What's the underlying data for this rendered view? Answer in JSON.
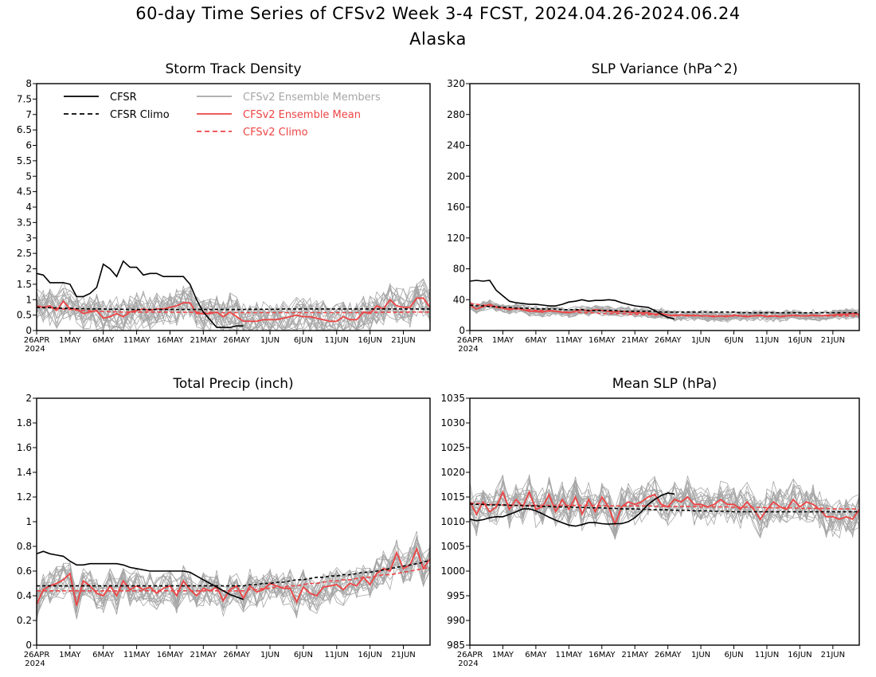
{
  "figure": {
    "title": "60-day Time Series of CFSv2 Week 3-4 FCST, 2024.04.26-2024.06.24",
    "subtitle": "Alaska"
  },
  "legend": {
    "cfsr": "CFSR",
    "cfsr_climo": "CFSR Climo",
    "members": "CFSv2 Ensemble Members",
    "ens_mean": "CFSv2 Ensemble Mean",
    "cfsv2_climo": "CFSv2 Climo"
  },
  "colors": {
    "cfsr": "#000000",
    "members": "#a6a6a6",
    "ens_mean": "#ee4444",
    "climo_red": "#ee4444"
  },
  "chart_data": [
    {
      "type": "line",
      "title": "Storm Track Density",
      "x_ticks": [
        "26APR",
        "1MAY",
        "6MAY",
        "11MAY",
        "16MAY",
        "21MAY",
        "26MAY",
        "1JUN",
        "6JUN",
        "11JUN",
        "16JUN",
        "21JUN"
      ],
      "x_year": "2024",
      "x_range_days": [
        1,
        60
      ],
      "ylim": [
        0,
        8
      ],
      "y_ticks": [
        "0",
        "0.5",
        "1",
        "1.5",
        "2",
        "2.5",
        "3",
        "3.5",
        "4",
        "4.5",
        "5",
        "5.5",
        "6",
        "6.5",
        "7",
        "7.5",
        "8"
      ],
      "legend_position": "top-left",
      "cfsr": [
        1.85,
        1.8,
        1.55,
        1.55,
        1.55,
        1.5,
        1.1,
        1.1,
        1.2,
        1.4,
        2.15,
        2.0,
        1.75,
        2.25,
        2.05,
        2.05,
        1.8,
        1.85,
        1.85,
        1.75,
        1.75,
        1.75,
        1.75,
        1.5,
        1.0,
        0.6,
        0.35,
        0.1,
        0.1,
        0.1,
        0.15,
        0.15
      ],
      "cfsr_climo": [
        0.75,
        0.74,
        0.74,
        0.73,
        0.72,
        0.72,
        0.71,
        0.71,
        0.7,
        0.7,
        0.7,
        0.69,
        0.69,
        0.69,
        0.68,
        0.68,
        0.68,
        0.68,
        0.68,
        0.68,
        0.68,
        0.68,
        0.68,
        0.68,
        0.68,
        0.68,
        0.68,
        0.68,
        0.68,
        0.68,
        0.68,
        0.68,
        0.69,
        0.69,
        0.69,
        0.69,
        0.69,
        0.7,
        0.7,
        0.7,
        0.7,
        0.7,
        0.7,
        0.7,
        0.7,
        0.7,
        0.7,
        0.7,
        0.7,
        0.7,
        0.7,
        0.7,
        0.7,
        0.7,
        0.7,
        0.7,
        0.7,
        0.7,
        0.7,
        0.7
      ],
      "ens_mean": [
        0.8,
        0.75,
        0.8,
        0.65,
        0.95,
        0.7,
        0.7,
        0.55,
        0.6,
        0.65,
        0.4,
        0.45,
        0.55,
        0.45,
        0.6,
        0.65,
        0.7,
        0.65,
        0.7,
        0.7,
        0.75,
        0.8,
        0.9,
        0.9,
        0.55,
        0.55,
        0.55,
        0.6,
        0.45,
        0.6,
        0.45,
        0.3,
        0.3,
        0.3,
        0.35,
        0.35,
        0.35,
        0.4,
        0.45,
        0.5,
        0.45,
        0.45,
        0.4,
        0.35,
        0.3,
        0.3,
        0.45,
        0.35,
        0.35,
        0.6,
        0.55,
        0.8,
        0.7,
        1.0,
        0.8,
        0.75,
        0.75,
        1.05,
        1.05,
        0.75
      ],
      "cfsv2_climo": [
        0.78,
        0.76,
        0.74,
        0.72,
        0.7,
        0.68,
        0.66,
        0.65,
        0.64,
        0.63,
        0.62,
        0.61,
        0.61,
        0.6,
        0.6,
        0.6,
        0.6,
        0.6,
        0.6,
        0.6,
        0.6,
        0.59,
        0.59,
        0.59,
        0.59,
        0.59,
        0.59,
        0.58,
        0.58,
        0.58,
        0.58,
        0.58,
        0.58,
        0.58,
        0.58,
        0.58,
        0.58,
        0.58,
        0.58,
        0.58,
        0.58,
        0.58,
        0.58,
        0.58,
        0.58,
        0.58,
        0.58,
        0.58,
        0.58,
        0.59,
        0.59,
        0.59,
        0.59,
        0.59,
        0.59,
        0.59,
        0.6,
        0.6,
        0.6,
        0.6
      ]
    },
    {
      "type": "line",
      "title": "SLP Variance (hPa^2)",
      "x_ticks": [
        "26APR",
        "1MAY",
        "6MAY",
        "11MAY",
        "16MAY",
        "21MAY",
        "26MAY",
        "1JUN",
        "6JUN",
        "11JUN",
        "16JUN",
        "21JUN"
      ],
      "x_year": "2024",
      "x_range_days": [
        1,
        60
      ],
      "ylim": [
        0,
        320
      ],
      "y_ticks": [
        "0",
        "40",
        "80",
        "120",
        "160",
        "200",
        "240",
        "280",
        "320"
      ],
      "cfsr": [
        64,
        65,
        64,
        65,
        52,
        45,
        38,
        36,
        35,
        34,
        34,
        33,
        32,
        32,
        34,
        37,
        38,
        40,
        38,
        39,
        39,
        40,
        39,
        36,
        34,
        32,
        31,
        30,
        26,
        21,
        17,
        15
      ],
      "cfsr_climo": [
        33,
        32,
        32,
        31,
        31,
        30,
        30,
        29,
        29,
        29,
        28,
        28,
        28,
        28,
        27,
        27,
        27,
        27,
        26,
        26,
        26,
        26,
        26,
        25,
        25,
        25,
        25,
        25,
        25,
        24,
        24,
        24,
        24,
        24,
        24,
        24,
        24,
        24,
        24,
        24,
        24,
        23,
        23,
        23,
        23,
        23,
        23,
        23,
        23,
        23,
        23,
        23,
        23,
        23,
        23,
        23,
        23,
        23,
        23,
        23
      ],
      "ens_mean": [
        33,
        28,
        31,
        34,
        30,
        29,
        27,
        29,
        27,
        25,
        25,
        24,
        26,
        25,
        24,
        23,
        25,
        27,
        25,
        27,
        26,
        25,
        24,
        25,
        24,
        23,
        23,
        23,
        21,
        22,
        20,
        19,
        20,
        19,
        20,
        19,
        19,
        18,
        19,
        18,
        20,
        19,
        18,
        19,
        20,
        18,
        19,
        18,
        19,
        20,
        19,
        19,
        20,
        19,
        20,
        20,
        21,
        21,
        22,
        21
      ],
      "cfsv2_climo": [
        35,
        34,
        33,
        32,
        31,
        30,
        29,
        28,
        27,
        27,
        26,
        26,
        25,
        25,
        24,
        24,
        24,
        23,
        23,
        23,
        22,
        22,
        22,
        22,
        21,
        21,
        21,
        21,
        20,
        20,
        20,
        20,
        20,
        20,
        19,
        19,
        19,
        19,
        19,
        19,
        19,
        19,
        19,
        19,
        19,
        19,
        19,
        19,
        19,
        19,
        19,
        19,
        19,
        19,
        19,
        19,
        19,
        19,
        19,
        19
      ]
    },
    {
      "type": "line",
      "title": "Total Precip (inch)",
      "x_ticks": [
        "26APR",
        "1MAY",
        "6MAY",
        "11MAY",
        "16MAY",
        "21MAY",
        "26MAY",
        "1JUN",
        "6JUN",
        "11JUN",
        "16JUN",
        "21JUN"
      ],
      "x_year": "2024",
      "x_range_days": [
        1,
        60
      ],
      "ylim": [
        0,
        2
      ],
      "y_ticks": [
        "0",
        "0.2",
        "0.4",
        "0.6",
        "0.8",
        "1",
        "1.2",
        "1.4",
        "1.6",
        "1.8",
        "2"
      ],
      "cfsr": [
        0.74,
        0.76,
        0.74,
        0.73,
        0.72,
        0.68,
        0.65,
        0.65,
        0.66,
        0.66,
        0.66,
        0.66,
        0.66,
        0.65,
        0.63,
        0.62,
        0.61,
        0.6,
        0.6,
        0.6,
        0.6,
        0.6,
        0.6,
        0.59,
        0.56,
        0.53,
        0.5,
        0.47,
        0.44,
        0.41,
        0.39,
        0.37
      ],
      "cfsr_climo": [
        0.48,
        0.48,
        0.48,
        0.48,
        0.48,
        0.48,
        0.48,
        0.48,
        0.48,
        0.48,
        0.48,
        0.48,
        0.48,
        0.48,
        0.48,
        0.48,
        0.48,
        0.48,
        0.48,
        0.48,
        0.48,
        0.48,
        0.48,
        0.48,
        0.48,
        0.48,
        0.48,
        0.48,
        0.48,
        0.48,
        0.48,
        0.48,
        0.49,
        0.49,
        0.5,
        0.5,
        0.51,
        0.51,
        0.52,
        0.53,
        0.53,
        0.54,
        0.55,
        0.55,
        0.56,
        0.56,
        0.57,
        0.57,
        0.58,
        0.59,
        0.59,
        0.6,
        0.61,
        0.62,
        0.63,
        0.64,
        0.65,
        0.66,
        0.67,
        0.69
      ],
      "ens_mean": [
        0.33,
        0.45,
        0.48,
        0.5,
        0.53,
        0.58,
        0.32,
        0.52,
        0.48,
        0.42,
        0.4,
        0.48,
        0.4,
        0.52,
        0.45,
        0.48,
        0.45,
        0.47,
        0.42,
        0.46,
        0.48,
        0.4,
        0.52,
        0.45,
        0.4,
        0.46,
        0.44,
        0.47,
        0.36,
        0.45,
        0.48,
        0.38,
        0.48,
        0.43,
        0.45,
        0.5,
        0.48,
        0.46,
        0.46,
        0.35,
        0.47,
        0.42,
        0.4,
        0.47,
        0.48,
        0.49,
        0.45,
        0.5,
        0.48,
        0.55,
        0.49,
        0.58,
        0.62,
        0.6,
        0.75,
        0.62,
        0.65,
        0.78,
        0.62,
        0.7
      ],
      "cfsv2_climo": [
        0.44,
        0.44,
        0.44,
        0.44,
        0.44,
        0.44,
        0.44,
        0.44,
        0.44,
        0.44,
        0.44,
        0.44,
        0.44,
        0.44,
        0.44,
        0.44,
        0.44,
        0.44,
        0.44,
        0.44,
        0.44,
        0.44,
        0.44,
        0.44,
        0.44,
        0.44,
        0.44,
        0.44,
        0.44,
        0.44,
        0.44,
        0.44,
        0.45,
        0.45,
        0.46,
        0.46,
        0.47,
        0.47,
        0.48,
        0.48,
        0.49,
        0.5,
        0.5,
        0.51,
        0.52,
        0.52,
        0.53,
        0.53,
        0.54,
        0.55,
        0.55,
        0.56,
        0.57,
        0.57,
        0.58,
        0.59,
        0.6,
        0.61,
        0.62,
        0.63
      ]
    },
    {
      "type": "line",
      "title": "Mean SLP (hPa)",
      "x_ticks": [
        "26APR",
        "1MAY",
        "6MAY",
        "11MAY",
        "16MAY",
        "21MAY",
        "26MAY",
        "1JUN",
        "6JUN",
        "11JUN",
        "16JUN",
        "21JUN"
      ],
      "x_year": "2024",
      "x_range_days": [
        1,
        60
      ],
      "ylim": [
        985,
        1035
      ],
      "y_ticks": [
        "985",
        "990",
        "995",
        "1000",
        "1005",
        "1010",
        "1015",
        "1020",
        "1025",
        "1030",
        "1035"
      ],
      "cfsr": [
        1010.5,
        1010.2,
        1010.4,
        1010.8,
        1011,
        1011,
        1011.5,
        1012,
        1012.6,
        1012.6,
        1012.2,
        1011.6,
        1010.9,
        1010.3,
        1009.8,
        1009.3,
        1009.1,
        1009.4,
        1009.8,
        1009.8,
        1009.6,
        1009.5,
        1009.6,
        1009.6,
        1010,
        1010.8,
        1012,
        1013.5,
        1014.5,
        1015.3,
        1015.8,
        1015.6
      ],
      "cfsr_climo": [
        1013.6,
        1013.5,
        1013.5,
        1013.4,
        1013.4,
        1013.4,
        1013.3,
        1013.3,
        1013.3,
        1013.2,
        1013.2,
        1013.1,
        1013.1,
        1013,
        1013,
        1013,
        1012.9,
        1012.9,
        1012.8,
        1012.8,
        1012.8,
        1012.7,
        1012.7,
        1012.6,
        1012.6,
        1012.6,
        1012.5,
        1012.5,
        1012.4,
        1012.4,
        1012.4,
        1012.3,
        1012.3,
        1012.3,
        1012.2,
        1012.2,
        1012.2,
        1012.1,
        1012.1,
        1012.1,
        1012,
        1012,
        1012,
        1012,
        1012,
        1012,
        1012,
        1012,
        1012,
        1012,
        1012,
        1012,
        1012,
        1012,
        1012,
        1012,
        1012,
        1012,
        1012,
        1012
      ],
      "ens_mean": [
        1014,
        1011.5,
        1014,
        1012,
        1013,
        1016,
        1012.5,
        1014.5,
        1013,
        1016,
        1012.5,
        1013,
        1015.5,
        1012,
        1014.5,
        1012.5,
        1015,
        1011.5,
        1014.5,
        1012,
        1015,
        1013,
        1009.5,
        1013,
        1014,
        1013.5,
        1014,
        1015,
        1015.5,
        1013.5,
        1013,
        1014.5,
        1014,
        1015,
        1013.5,
        1013.5,
        1013,
        1013.5,
        1014.5,
        1013.5,
        1013.5,
        1012.5,
        1014,
        1012.5,
        1010.5,
        1012.5,
        1014,
        1013,
        1012.5,
        1014.5,
        1013,
        1014,
        1013.5,
        1012.5,
        1011,
        1011,
        1010.5,
        1011,
        1010.5,
        1012.5
      ],
      "cfsv2_climo": [
        1013.8,
        1013.7,
        1013.6,
        1013.5,
        1013.5,
        1013.4,
        1013.4,
        1013.3,
        1013.3,
        1013.3,
        1013.3,
        1013.3,
        1013.3,
        1013.3,
        1013.3,
        1013.3,
        1013.3,
        1013.3,
        1013.3,
        1013.3,
        1013.2,
        1013.2,
        1013.2,
        1013.2,
        1013.2,
        1013.2,
        1013.2,
        1013.2,
        1013.1,
        1013.1,
        1013.1,
        1013.1,
        1013.1,
        1013.1,
        1013.1,
        1013,
        1013,
        1013,
        1013,
        1013,
        1012.9,
        1012.9,
        1012.9,
        1012.9,
        1012.9,
        1012.8,
        1012.8,
        1012.8,
        1012.8,
        1012.8,
        1012.7,
        1012.7,
        1012.7,
        1012.7,
        1012.7,
        1012.6,
        1012.6,
        1012.6,
        1012.6,
        1012.6
      ]
    }
  ]
}
